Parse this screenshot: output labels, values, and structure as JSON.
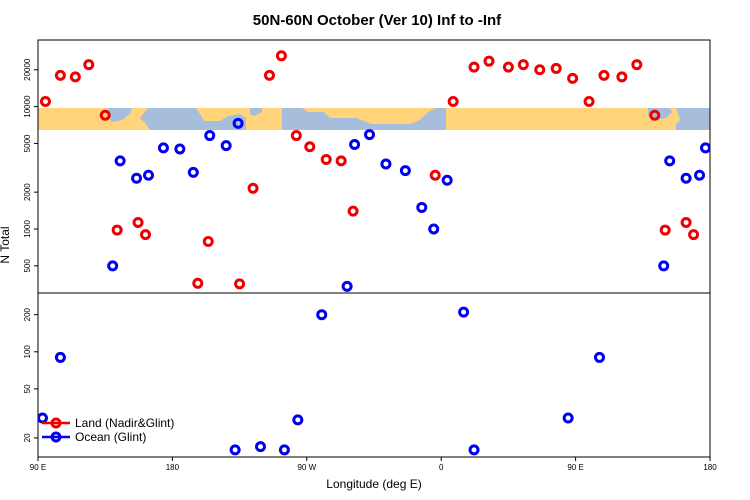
{
  "chart_data": {
    "type": "scatter",
    "title": "50N-60N October (Ver 10)   Inf to -Inf",
    "xlabel": "Longitude (deg E)",
    "ylabel": "N Total",
    "x_ticks": [
      "90 E",
      "180",
      "90 W",
      "0",
      "90 E",
      "180"
    ],
    "x_tick_positions": [
      90,
      180,
      270,
      360,
      450,
      540
    ],
    "x_range": [
      90,
      540
    ],
    "y_scale": "log",
    "upper_panel": {
      "y_range": [
        300,
        35000
      ],
      "y_ticks": [
        "500",
        "1000",
        "2000",
        "5000",
        "10000",
        "20000"
      ],
      "y_tick_values": [
        500,
        1000,
        2000,
        5000,
        10000,
        20000
      ]
    },
    "lower_panel": {
      "y_range": [
        14,
        300
      ],
      "y_ticks": [
        "20",
        "50",
        "100",
        "200"
      ],
      "y_tick_values": [
        20,
        50,
        100,
        200
      ]
    },
    "map_strip": {
      "land_color": "#ffd47a",
      "ocean_color": "#a6bddb",
      "latitude_band": "50N-60N"
    },
    "series": [
      {
        "name": "Land (Nadir&Glint)",
        "color": "#ee0000",
        "points": [
          [
            95,
            11000
          ],
          [
            105,
            18000
          ],
          [
            115,
            17500
          ],
          [
            124,
            22000
          ],
          [
            135,
            8500
          ],
          [
            143,
            980
          ],
          [
            157,
            1130
          ],
          [
            162,
            900
          ],
          [
            197,
            360
          ],
          [
            204,
            790
          ],
          [
            225,
            356
          ],
          [
            234,
            2150
          ],
          [
            245,
            18000
          ],
          [
            253,
            26000
          ],
          [
            263,
            5800
          ],
          [
            272,
            4700
          ],
          [
            283,
            3700
          ],
          [
            293,
            3600
          ],
          [
            301,
            1400
          ],
          [
            356,
            2750
          ],
          [
            368,
            11000
          ],
          [
            382,
            21000
          ],
          [
            392,
            23500
          ],
          [
            405,
            21000
          ],
          [
            415,
            22000
          ],
          [
            426,
            20000
          ],
          [
            437,
            20500
          ],
          [
            448,
            17000
          ],
          [
            459,
            11000
          ],
          [
            469,
            18000
          ],
          [
            481,
            17500
          ],
          [
            491,
            22000
          ],
          [
            503,
            8500
          ],
          [
            510,
            980
          ],
          [
            524,
            1130
          ],
          [
            529,
            900
          ]
        ]
      },
      {
        "name": "Ocean (Glint)",
        "color": "#0000ee",
        "points": [
          [
            93,
            29
          ],
          [
            105,
            90
          ],
          [
            140,
            500
          ],
          [
            145,
            3600
          ],
          [
            156,
            2600
          ],
          [
            164,
            2750
          ],
          [
            174,
            4600
          ],
          [
            185,
            4500
          ],
          [
            194,
            2900
          ],
          [
            205,
            5800
          ],
          [
            216,
            4800
          ],
          [
            224,
            7300
          ],
          [
            222,
            16
          ],
          [
            239,
            17
          ],
          [
            264,
            28
          ],
          [
            255,
            16
          ],
          [
            280,
            200
          ],
          [
            297,
            340
          ],
          [
            302,
            4900
          ],
          [
            312,
            5900
          ],
          [
            323,
            3400
          ],
          [
            336,
            3000
          ],
          [
            347,
            1500
          ],
          [
            355,
            1000
          ],
          [
            364,
            2500
          ],
          [
            375,
            210
          ],
          [
            382,
            16
          ],
          [
            445,
            29
          ],
          [
            466,
            90
          ],
          [
            509,
            500
          ],
          [
            513,
            3600
          ],
          [
            524,
            2600
          ],
          [
            533,
            2750
          ],
          [
            537,
            4600
          ]
        ]
      }
    ],
    "legend": {
      "placement": "bottom-left"
    }
  }
}
